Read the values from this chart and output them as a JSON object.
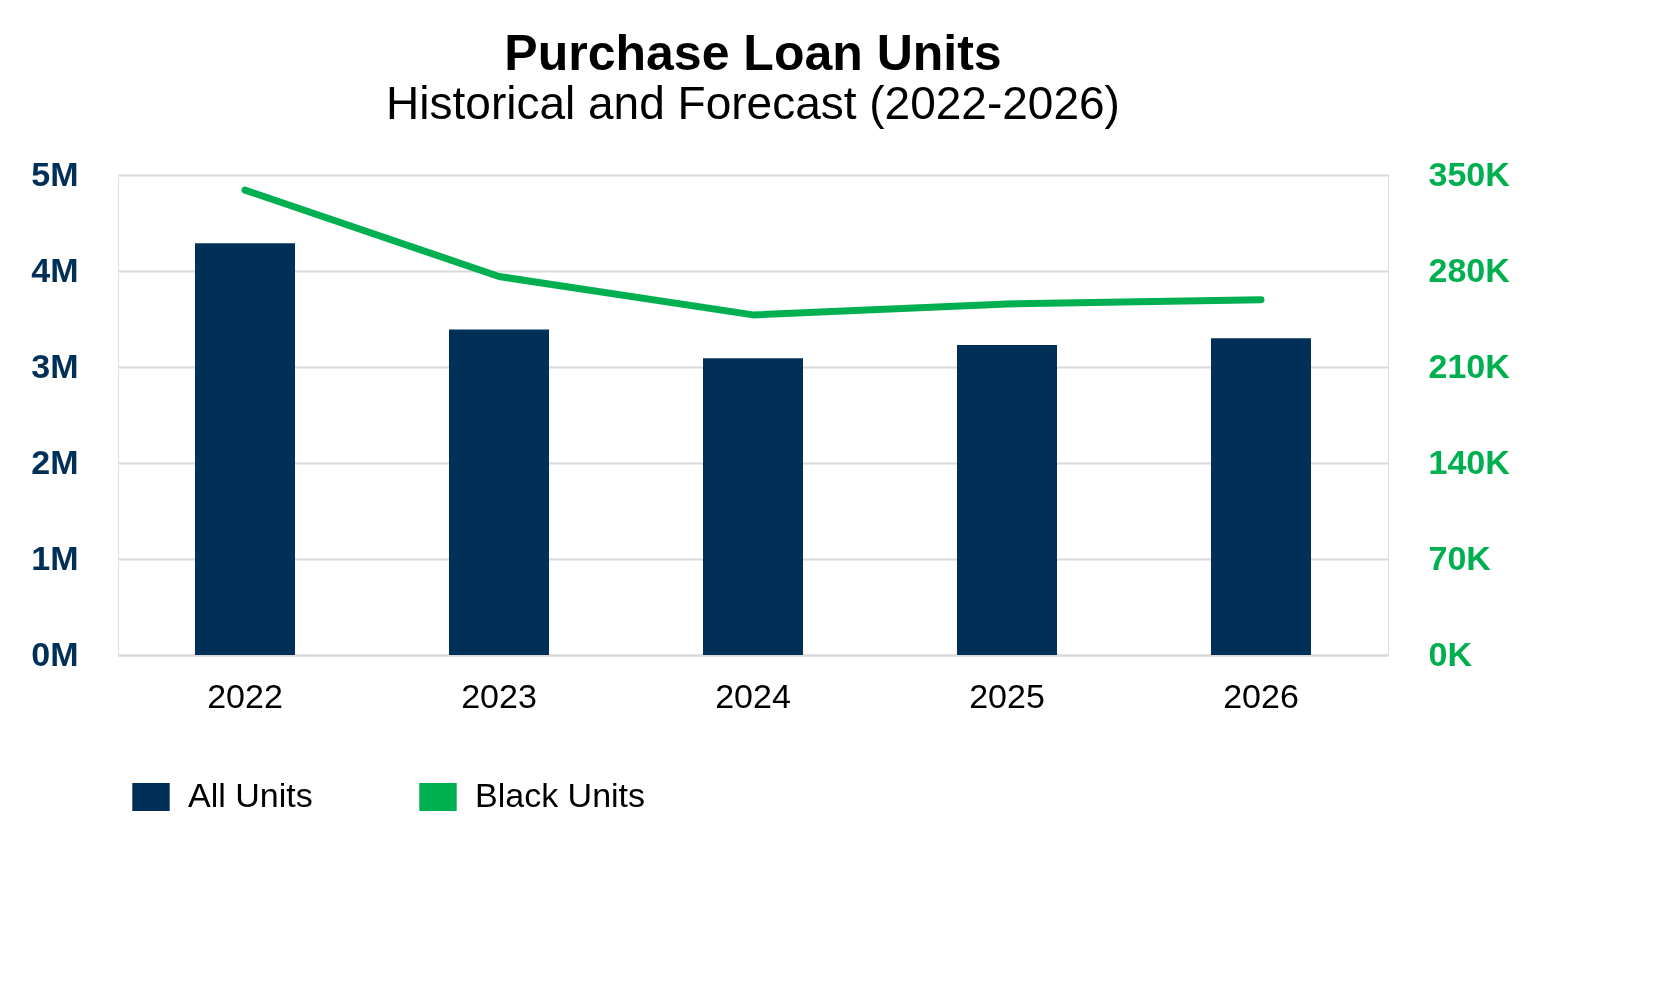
{
  "chart_data": {
    "type": "bar",
    "title": "Purchase Loan Units",
    "subtitle": "Historical and Forecast (2022-2026)",
    "categories": [
      "2022",
      "2023",
      "2024",
      "2025",
      "2026"
    ],
    "series": [
      {
        "name": "All Units",
        "color": "#003057",
        "values": [
          4290000,
          3390000,
          3090000,
          3230000,
          3300000
        ]
      },
      {
        "name": "Black Units",
        "type": "line",
        "axis": "y2",
        "color": "#00b050",
        "values": [
          339000,
          276000,
          248000,
          256000,
          259000
        ]
      }
    ],
    "ylim": [
      0,
      5000000
    ],
    "yticks": [
      {
        "value": 0,
        "label": "0M"
      },
      {
        "value": 1000000,
        "label": "1M"
      },
      {
        "value": 2000000,
        "label": "2M"
      },
      {
        "value": 3000000,
        "label": "3M"
      },
      {
        "value": 4000000,
        "label": "4M"
      },
      {
        "value": 5000000,
        "label": "5M"
      }
    ],
    "y2lim": [
      0,
      350000
    ],
    "y2ticks": [
      {
        "value": 0,
        "label": "0K"
      },
      {
        "value": 70000,
        "label": "70K"
      },
      {
        "value": 140000,
        "label": "140K"
      },
      {
        "value": 210000,
        "label": "210K"
      },
      {
        "value": 280000,
        "label": "280K"
      },
      {
        "value": 350000,
        "label": "350K"
      }
    ],
    "grid": "y",
    "legend": "bottom left",
    "marker": "none",
    "line_style": "solid"
  }
}
